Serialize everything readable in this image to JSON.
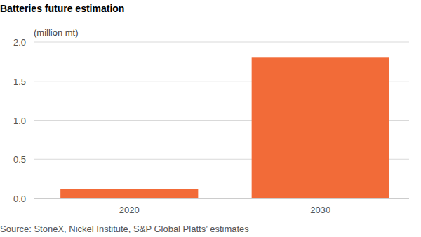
{
  "chart_data": {
    "type": "bar",
    "title": "Batteries future estimation",
    "ylabel": "(million mt)",
    "categories": [
      "2020",
      "2030"
    ],
    "values": [
      0.12,
      1.8
    ],
    "color": "#f26b38",
    "ylim": [
      0,
      2
    ],
    "yticks": [
      {
        "value": 0,
        "label": "0.0"
      },
      0.5,
      {
        "value": 1,
        "label": "1.0"
      },
      1.5,
      {
        "value": 2,
        "label": "2.0"
      }
    ],
    "grid": true,
    "source": "Source: StoneX, Nickel Institute, S&P Global Platts’ estimates"
  }
}
